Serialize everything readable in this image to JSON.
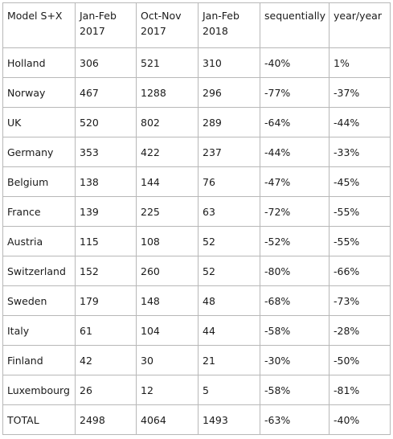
{
  "table": {
    "headers": [
      "Model S+X",
      "Jan-Feb 2017",
      "Oct-Nov 2017",
      "Jan-Feb 2018",
      "sequentially",
      "year/year"
    ],
    "rows": [
      [
        "Holland",
        "306",
        "521",
        "310",
        "-40%",
        "1%"
      ],
      [
        "Norway",
        "467",
        "1288",
        "296",
        "-77%",
        "-37%"
      ],
      [
        "UK",
        "520",
        "802",
        "289",
        "-64%",
        "-44%"
      ],
      [
        "Germany",
        "353",
        "422",
        "237",
        "-44%",
        "-33%"
      ],
      [
        "Belgium",
        "138",
        "144",
        "76",
        "-47%",
        "-45%"
      ],
      [
        "France",
        "139",
        "225",
        "63",
        "-72%",
        "-55%"
      ],
      [
        "Austria",
        "115",
        "108",
        "52",
        "-52%",
        "-55%"
      ],
      [
        "Switzerland",
        "152",
        "260",
        "52",
        "-80%",
        "-66%"
      ],
      [
        "Sweden",
        "179",
        "148",
        "48",
        "-68%",
        "-73%"
      ],
      [
        "Italy",
        "61",
        "104",
        "44",
        "-58%",
        "-28%"
      ],
      [
        "Finland",
        "42",
        "30",
        "21",
        "-30%",
        "-50%"
      ],
      [
        "Luxembourg",
        "26",
        "12",
        "5",
        "-58%",
        "-81%"
      ],
      [
        "TOTAL",
        "2498",
        "4064",
        "1493",
        "-63%",
        "-40%"
      ]
    ]
  }
}
